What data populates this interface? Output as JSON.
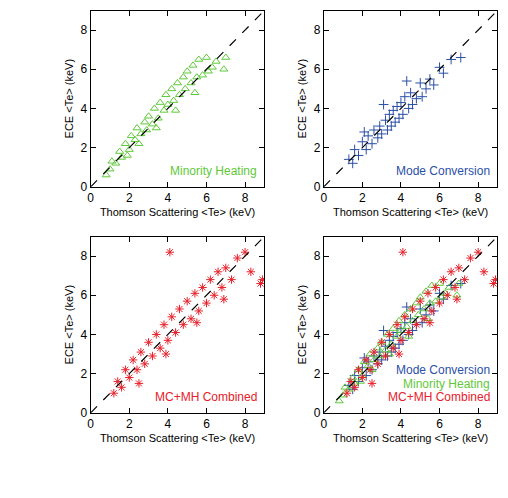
{
  "chart_data": [
    {
      "type": "scatter",
      "xlabel": "Thomson Scattering <Te> (keV)",
      "ylabel": "ECE <Te> (keV)",
      "xlim": [
        0,
        9
      ],
      "ylim": [
        0,
        9
      ],
      "xticks": [
        0,
        2,
        4,
        6,
        8
      ],
      "yticks": [
        0,
        2,
        4,
        6,
        8
      ],
      "series": [
        {
          "name": "Minority Heating",
          "color": "#5fc93a",
          "marker": "triangle",
          "x": [
            0.8,
            1.0,
            1.1,
            1.3,
            1.5,
            1.6,
            1.8,
            2.0,
            2.1,
            2.3,
            2.4,
            2.6,
            2.8,
            2.9,
            3.0,
            3.2,
            3.3,
            3.5,
            3.6,
            3.8,
            3.9,
            4.0,
            4.2,
            4.3,
            4.5,
            4.6,
            4.8,
            4.9,
            5.0,
            5.2,
            5.3,
            5.5,
            5.6,
            5.8,
            6.0,
            6.1,
            6.3,
            6.5,
            6.9,
            7.0,
            2.5,
            3.4,
            4.4,
            1.9,
            5.4
          ],
          "y": [
            0.6,
            0.9,
            1.3,
            1.2,
            1.8,
            1.5,
            2.2,
            1.9,
            2.6,
            2.4,
            3.0,
            2.7,
            3.3,
            2.9,
            3.6,
            3.2,
            4.0,
            3.5,
            4.3,
            3.9,
            4.7,
            4.2,
            5.0,
            4.4,
            5.3,
            4.7,
            5.6,
            5.0,
            5.9,
            5.3,
            6.2,
            5.6,
            6.5,
            5.7,
            6.6,
            5.9,
            6.1,
            6.4,
            6.0,
            6.6,
            2.2,
            3.0,
            3.9,
            1.6,
            4.8
          ]
        }
      ]
    },
    {
      "type": "scatter",
      "xlabel": "Thomson Scattering <Te> (keV)",
      "ylabel": "ECE <Te> (keV)",
      "xlim": [
        0,
        9
      ],
      "ylim": [
        0,
        9
      ],
      "xticks": [
        0,
        2,
        4,
        6,
        8
      ],
      "yticks": [
        0,
        2,
        4,
        6,
        8
      ],
      "series": [
        {
          "name": "Mode Conversion",
          "color": "#2a4fa8",
          "marker": "plus",
          "x": [
            1.3,
            1.5,
            1.6,
            1.8,
            2.0,
            2.2,
            2.3,
            2.5,
            2.6,
            2.8,
            2.9,
            3.0,
            3.2,
            3.3,
            3.4,
            3.5,
            3.6,
            3.7,
            3.8,
            3.9,
            4.0,
            4.1,
            4.2,
            4.4,
            4.5,
            4.6,
            4.8,
            5.0,
            5.1,
            5.3,
            5.5,
            5.7,
            6.0,
            6.2,
            6.6,
            7.1,
            2.1,
            3.1,
            4.3
          ],
          "y": [
            1.4,
            1.2,
            1.9,
            1.6,
            2.3,
            1.9,
            2.6,
            2.2,
            2.9,
            2.5,
            3.1,
            2.7,
            3.4,
            2.9,
            3.7,
            3.1,
            3.9,
            3.3,
            4.1,
            3.5,
            4.3,
            3.7,
            4.6,
            4.0,
            4.8,
            4.2,
            4.5,
            5.3,
            4.6,
            5.0,
            5.5,
            5.2,
            6.1,
            5.8,
            6.5,
            6.6,
            2.8,
            4.2,
            5.4
          ]
        }
      ]
    },
    {
      "type": "scatter",
      "xlabel": "Thomson Scattering <Te> (keV)",
      "ylabel": "ECE <Te> (keV)",
      "xlim": [
        0,
        9
      ],
      "ylim": [
        0,
        9
      ],
      "xticks": [
        0,
        2,
        4,
        6,
        8
      ],
      "yticks": [
        0,
        2,
        4,
        6,
        8
      ],
      "series": [
        {
          "name": "MC+MH Combined",
          "color": "#e8202a",
          "marker": "asterisk",
          "x": [
            1.2,
            1.4,
            1.6,
            1.8,
            2.0,
            2.2,
            2.4,
            2.6,
            2.8,
            3.0,
            3.2,
            3.4,
            3.6,
            3.8,
            4.0,
            4.2,
            4.4,
            4.6,
            4.8,
            5.0,
            5.2,
            5.4,
            5.6,
            5.8,
            6.0,
            6.2,
            6.4,
            6.6,
            6.8,
            7.0,
            7.3,
            7.6,
            8.0,
            8.3,
            8.8,
            8.9,
            3.9,
            5.5,
            6.9,
            4.1,
            2.5
          ],
          "y": [
            1.0,
            1.6,
            1.3,
            2.2,
            1.8,
            2.7,
            2.2,
            3.1,
            2.5,
            3.6,
            2.9,
            4.0,
            3.3,
            4.5,
            3.7,
            4.9,
            4.1,
            5.3,
            4.5,
            5.7,
            4.8,
            6.1,
            5.2,
            6.4,
            5.6,
            6.8,
            6.0,
            7.2,
            6.4,
            7.4,
            6.8,
            7.9,
            8.2,
            7.2,
            6.6,
            6.8,
            3.0,
            4.6,
            5.8,
            8.2,
            1.5
          ]
        }
      ]
    },
    {
      "type": "scatter",
      "xlabel": "Thomson Scattering <Te> (keV)",
      "ylabel": "ECE <Te> (keV)",
      "xlim": [
        0,
        9
      ],
      "ylim": [
        0,
        9
      ],
      "xticks": [
        0,
        2,
        4,
        6,
        8
      ],
      "yticks": [
        0,
        2,
        4,
        6,
        8
      ],
      "series": [
        {
          "name": "Mode Conversion",
          "color": "#2a4fa8",
          "marker": "plus",
          "x": [
            1.3,
            1.5,
            1.6,
            1.8,
            2.0,
            2.2,
            2.3,
            2.5,
            2.6,
            2.8,
            2.9,
            3.0,
            3.2,
            3.3,
            3.4,
            3.5,
            3.6,
            3.7,
            3.8,
            3.9,
            4.0,
            4.1,
            4.2,
            4.4,
            4.5,
            4.6,
            4.8,
            5.0,
            5.1,
            5.3,
            5.5,
            5.7,
            6.0,
            6.2,
            6.6,
            7.1,
            2.1,
            3.1,
            4.3
          ],
          "y": [
            1.4,
            1.2,
            1.9,
            1.6,
            2.3,
            1.9,
            2.6,
            2.2,
            2.9,
            2.5,
            3.1,
            2.7,
            3.4,
            2.9,
            3.7,
            3.1,
            3.9,
            3.3,
            4.1,
            3.5,
            4.3,
            3.7,
            4.6,
            4.0,
            4.8,
            4.2,
            4.5,
            5.3,
            4.6,
            5.0,
            5.5,
            5.2,
            6.1,
            5.8,
            6.5,
            6.6,
            2.8,
            4.2,
            5.4
          ]
        },
        {
          "name": "Minority Heating",
          "color": "#5fc93a",
          "marker": "triangle",
          "x": [
            0.8,
            1.0,
            1.1,
            1.3,
            1.5,
            1.6,
            1.8,
            2.0,
            2.1,
            2.3,
            2.4,
            2.6,
            2.8,
            2.9,
            3.0,
            3.2,
            3.3,
            3.5,
            3.6,
            3.8,
            3.9,
            4.0,
            4.2,
            4.3,
            4.5,
            4.6,
            4.8,
            4.9,
            5.0,
            5.2,
            5.3,
            5.5,
            5.6,
            5.8,
            6.0,
            6.1,
            6.3,
            6.5,
            6.9,
            7.0,
            2.5,
            3.4,
            4.4,
            1.9,
            5.4
          ],
          "y": [
            0.6,
            0.9,
            1.3,
            1.2,
            1.8,
            1.5,
            2.2,
            1.9,
            2.6,
            2.4,
            3.0,
            2.7,
            3.3,
            2.9,
            3.6,
            3.2,
            4.0,
            3.5,
            4.3,
            3.9,
            4.7,
            4.2,
            5.0,
            4.4,
            5.3,
            4.7,
            5.6,
            5.0,
            5.9,
            5.3,
            6.2,
            5.6,
            6.5,
            5.7,
            6.6,
            5.9,
            6.1,
            6.4,
            6.0,
            6.6,
            2.2,
            3.0,
            3.9,
            1.6,
            4.8
          ]
        },
        {
          "name": "MC+MH Combined",
          "color": "#e8202a",
          "marker": "asterisk",
          "x": [
            1.2,
            1.4,
            1.6,
            1.8,
            2.0,
            2.2,
            2.4,
            2.6,
            2.8,
            3.0,
            3.2,
            3.4,
            3.6,
            3.8,
            4.0,
            4.2,
            4.4,
            4.6,
            4.8,
            5.0,
            5.2,
            5.4,
            5.6,
            5.8,
            6.0,
            6.2,
            6.4,
            6.6,
            6.8,
            7.0,
            7.3,
            7.6,
            8.0,
            8.3,
            8.8,
            8.9,
            3.9,
            5.5,
            6.9,
            4.1,
            2.5
          ],
          "y": [
            1.0,
            1.6,
            1.3,
            2.2,
            1.8,
            2.7,
            2.2,
            3.1,
            2.5,
            3.6,
            2.9,
            4.0,
            3.3,
            4.5,
            3.7,
            4.9,
            4.1,
            5.3,
            4.5,
            5.7,
            4.8,
            6.1,
            5.2,
            6.4,
            5.6,
            6.8,
            6.0,
            7.2,
            6.4,
            7.4,
            6.8,
            7.9,
            8.2,
            7.2,
            6.6,
            6.8,
            3.0,
            4.6,
            5.8,
            8.2,
            1.5
          ]
        }
      ]
    }
  ]
}
